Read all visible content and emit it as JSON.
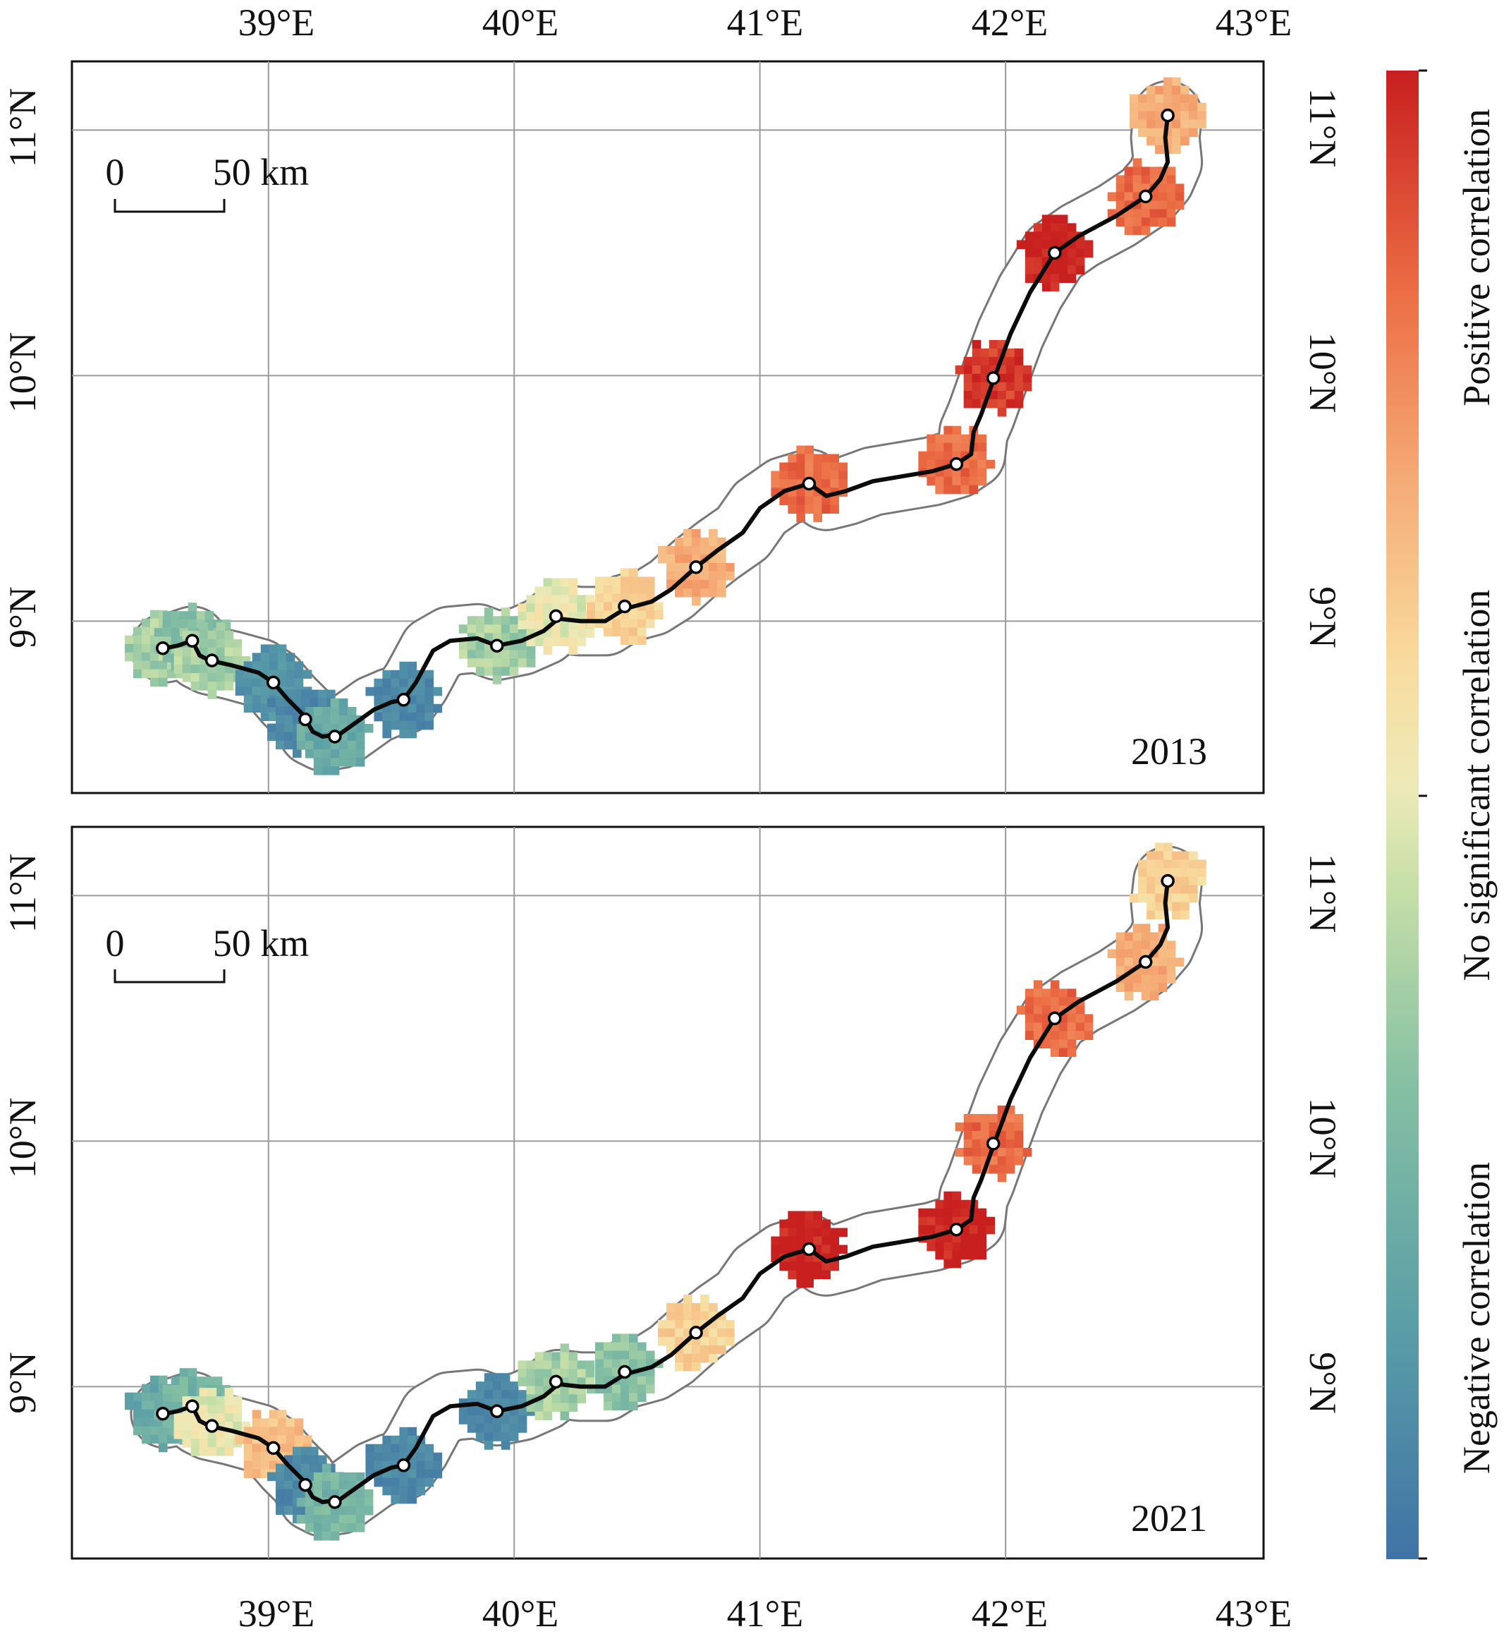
{
  "figure": {
    "lon_ticks": [
      "39°E",
      "40°E",
      "41°E",
      "42°E",
      "43°E"
    ],
    "lat_ticks": [
      "9°N",
      "10°N",
      "11°N"
    ],
    "scale_bar": {
      "start": "0",
      "end": "50 km"
    },
    "colorbar": {
      "labels": {
        "positive": "Positive correlation",
        "none": "No significant correlation",
        "negative": "Negative correlation"
      },
      "colors": {
        "positive": "#c81f1f",
        "positive_mid": "#ec6e45",
        "positive_light": "#f5ad78",
        "none_high": "#f8dc9f",
        "none": "#eeeab8",
        "none_low": "#c6dfa8",
        "negative_light": "#86c0a3",
        "negative_mid": "#5b9fa7",
        "negative": "#3f73a6"
      }
    }
  },
  "map_data": {
    "lon_range": [
      38.2,
      43.05
    ],
    "lat_range": [
      8.3,
      11.28
    ],
    "route": [
      [
        38.58,
        8.89
      ],
      [
        38.63,
        8.9
      ],
      [
        38.69,
        8.92
      ],
      [
        38.72,
        8.86
      ],
      [
        38.76,
        8.84
      ],
      [
        38.85,
        8.82
      ],
      [
        38.96,
        8.79
      ],
      [
        39.02,
        8.75
      ],
      [
        39.08,
        8.68
      ],
      [
        39.14,
        8.62
      ],
      [
        39.18,
        8.55
      ],
      [
        39.22,
        8.53
      ],
      [
        39.29,
        8.54
      ],
      [
        39.36,
        8.59
      ],
      [
        39.43,
        8.64
      ],
      [
        39.5,
        8.67
      ],
      [
        39.55,
        8.68
      ],
      [
        39.6,
        8.75
      ],
      [
        39.67,
        8.88
      ],
      [
        39.74,
        8.92
      ],
      [
        39.85,
        8.93
      ],
      [
        39.93,
        8.9
      ],
      [
        40.03,
        8.92
      ],
      [
        40.12,
        8.96
      ],
      [
        40.18,
        9.01
      ],
      [
        40.27,
        9.0
      ],
      [
        40.37,
        9.0
      ],
      [
        40.45,
        9.05
      ],
      [
        40.56,
        9.08
      ],
      [
        40.64,
        9.13
      ],
      [
        40.74,
        9.22
      ],
      [
        40.83,
        9.29
      ],
      [
        40.93,
        9.36
      ],
      [
        41.0,
        9.46
      ],
      [
        41.1,
        9.53
      ],
      [
        41.2,
        9.56
      ],
      [
        41.27,
        9.51
      ],
      [
        41.35,
        9.53
      ],
      [
        41.46,
        9.57
      ],
      [
        41.58,
        9.59
      ],
      [
        41.7,
        9.61
      ],
      [
        41.8,
        9.64
      ],
      [
        41.86,
        9.68
      ],
      [
        41.87,
        9.77
      ],
      [
        41.9,
        9.84
      ],
      [
        41.95,
        9.98
      ],
      [
        42.02,
        10.17
      ],
      [
        42.1,
        10.34
      ],
      [
        42.2,
        10.5
      ],
      [
        42.3,
        10.57
      ],
      [
        42.45,
        10.65
      ],
      [
        42.57,
        10.73
      ],
      [
        42.63,
        10.8
      ],
      [
        42.66,
        10.87
      ],
      [
        42.65,
        10.97
      ],
      [
        42.66,
        11.06
      ]
    ],
    "panels": [
      {
        "year": "2013",
        "stations": [
          {
            "lon": 38.57,
            "lat": 8.89,
            "corr": -0.2
          },
          {
            "lon": 38.69,
            "lat": 8.92,
            "corr": -0.3
          },
          {
            "lon": 38.77,
            "lat": 8.84,
            "corr": -0.2
          },
          {
            "lon": 39.02,
            "lat": 8.75,
            "corr": -0.7
          },
          {
            "lon": 39.15,
            "lat": 8.6,
            "corr": -0.8
          },
          {
            "lon": 39.27,
            "lat": 8.53,
            "corr": -0.5
          },
          {
            "lon": 39.55,
            "lat": 8.68,
            "corr": -0.8
          },
          {
            "lon": 39.93,
            "lat": 8.9,
            "corr": -0.2
          },
          {
            "lon": 40.17,
            "lat": 9.02,
            "corr": 0.0
          },
          {
            "lon": 40.45,
            "lat": 9.06,
            "corr": 0.2
          },
          {
            "lon": 40.74,
            "lat": 9.22,
            "corr": 0.4
          },
          {
            "lon": 41.2,
            "lat": 9.56,
            "corr": 0.7
          },
          {
            "lon": 41.8,
            "lat": 9.64,
            "corr": 0.7
          },
          {
            "lon": 41.95,
            "lat": 9.99,
            "corr": 0.9
          },
          {
            "lon": 42.2,
            "lat": 10.5,
            "corr": 1.0
          },
          {
            "lon": 42.57,
            "lat": 10.73,
            "corr": 0.7
          },
          {
            "lon": 42.66,
            "lat": 11.06,
            "corr": 0.4
          }
        ]
      },
      {
        "year": "2021",
        "stations": [
          {
            "lon": 38.57,
            "lat": 8.89,
            "corr": -0.5
          },
          {
            "lon": 38.69,
            "lat": 8.92,
            "corr": -0.4
          },
          {
            "lon": 38.77,
            "lat": 8.84,
            "corr": 0.0
          },
          {
            "lon": 39.02,
            "lat": 8.75,
            "corr": 0.3
          },
          {
            "lon": 39.15,
            "lat": 8.6,
            "corr": -0.8
          },
          {
            "lon": 39.27,
            "lat": 8.53,
            "corr": -0.4
          },
          {
            "lon": 39.55,
            "lat": 8.68,
            "corr": -0.8
          },
          {
            "lon": 39.93,
            "lat": 8.9,
            "corr": -0.8
          },
          {
            "lon": 40.17,
            "lat": 9.02,
            "corr": -0.2
          },
          {
            "lon": 40.45,
            "lat": 9.06,
            "corr": -0.3
          },
          {
            "lon": 40.74,
            "lat": 9.22,
            "corr": 0.2
          },
          {
            "lon": 41.2,
            "lat": 9.56,
            "corr": 1.0
          },
          {
            "lon": 41.8,
            "lat": 9.64,
            "corr": 1.0
          },
          {
            "lon": 41.95,
            "lat": 9.99,
            "corr": 0.7
          },
          {
            "lon": 42.2,
            "lat": 10.5,
            "corr": 0.7
          },
          {
            "lon": 42.57,
            "lat": 10.73,
            "corr": 0.4
          },
          {
            "lon": 42.66,
            "lat": 11.06,
            "corr": 0.2
          }
        ]
      }
    ]
  }
}
